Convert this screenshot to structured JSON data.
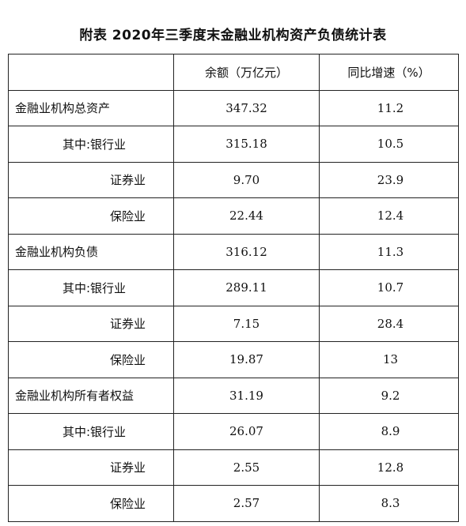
{
  "title": "附表  2020年三季度末金融业机构资产负债统计表",
  "table": {
    "headers": [
      "",
      "余额（万亿元）",
      "同比增速（%）"
    ],
    "rows": [
      {
        "label": "金融业机构总资产",
        "level": 0,
        "balance": "347.32",
        "growth": "11.2"
      },
      {
        "label": "其中:银行业",
        "level": 1,
        "balance": "315.18",
        "growth": "10.5"
      },
      {
        "label": "证券业",
        "level": 2,
        "balance": "9.70",
        "growth": "23.9"
      },
      {
        "label": "保险业",
        "level": 2,
        "balance": "22.44",
        "growth": "12.4"
      },
      {
        "label": "金融业机构负债",
        "level": 0,
        "balance": "316.12",
        "growth": "11.3"
      },
      {
        "label": "其中:银行业",
        "level": 1,
        "balance": "289.11",
        "growth": "10.7"
      },
      {
        "label": "证券业",
        "level": 2,
        "balance": "7.15",
        "growth": "28.4"
      },
      {
        "label": "保险业",
        "level": 2,
        "balance": "19.87",
        "growth": "13"
      },
      {
        "label": "金融业机构所有者权益",
        "level": 0,
        "balance": "31.19",
        "growth": "9.2"
      },
      {
        "label": "其中:银行业",
        "level": 1,
        "balance": "26.07",
        "growth": "8.9"
      },
      {
        "label": "证券业",
        "level": 2,
        "balance": "2.55",
        "growth": "12.8"
      },
      {
        "label": "保险业",
        "level": 2,
        "balance": "2.57",
        "growth": "8.3"
      }
    ]
  }
}
